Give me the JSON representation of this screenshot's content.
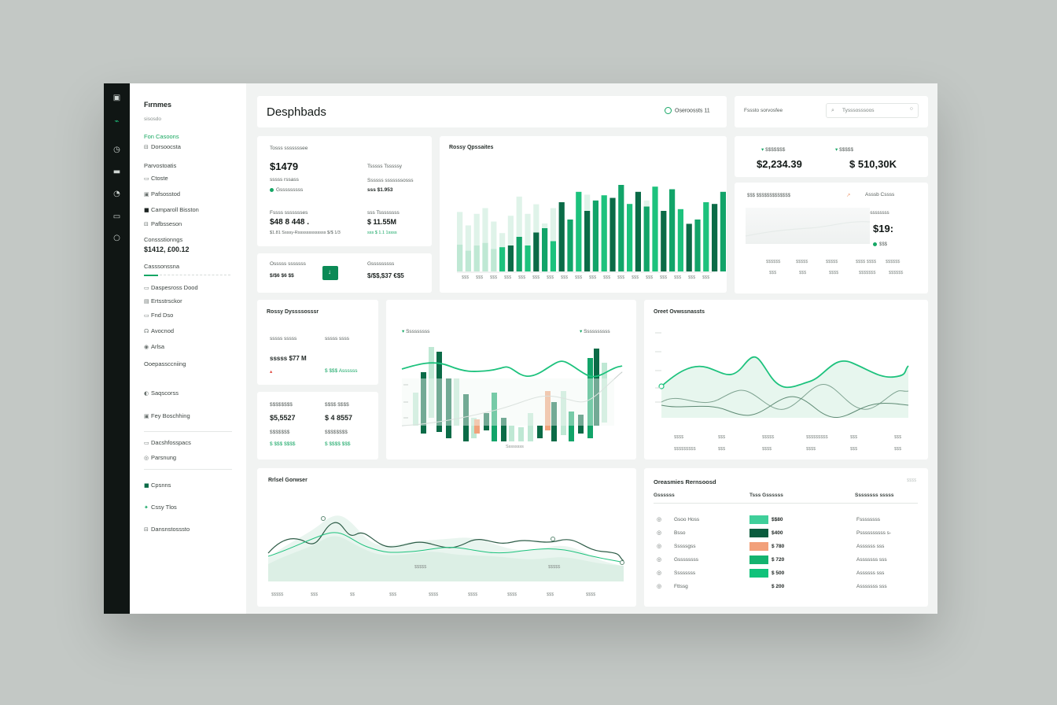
{
  "colors": {
    "dark": "#0b6b47",
    "mid": "#12a469",
    "bright": "#1dc27d",
    "pale": "#bfe8d4",
    "peach": "#f0a27b",
    "rail": "#101614"
  },
  "rail_icons": [
    "window-icon",
    "pulse-icon",
    "clock-icon",
    "card-icon",
    "gauge-icon",
    "box-icon",
    "circle-icon"
  ],
  "sidebar": {
    "title": "Fırnmes",
    "subtitle": "sisosdo",
    "items_top": [
      {
        "label": "Fon Casoons",
        "icon": "",
        "active": true
      },
      {
        "label": "Dorsoocsta",
        "icon": "⊟",
        "active": false
      }
    ],
    "section1": "Parvostoatis",
    "items_mid": [
      {
        "label": "Ctoste",
        "icon": "▭"
      },
      {
        "label": "Pafsosstod",
        "icon": "▣"
      },
      {
        "label": "Camparoll Bisston",
        "icon": "■"
      },
      {
        "label": "Pafbsseson",
        "icon": "⊟"
      }
    ],
    "section2": "Conssstionngs",
    "amount": "$1412, £00.12",
    "section3": "Casssonssna",
    "items_low": [
      {
        "label": "Daspesross Dood",
        "icon": "▭"
      },
      {
        "label": "Ertsstrsckor",
        "icon": "▤"
      },
      {
        "label": "Fnd Dso",
        "icon": "▭"
      },
      {
        "label": "Avocnod",
        "icon": "☊"
      },
      {
        "label": "Arlsa",
        "icon": "◉"
      }
    ],
    "section4": "Ooepassccniing",
    "items_bottom": [
      {
        "label": "Saqscorss",
        "icon": "◐"
      },
      {
        "label": "Fey Boschhing",
        "icon": "▣"
      },
      {
        "label": "Dacshfosspacs",
        "icon": "▭"
      },
      {
        "label": "Parsnung",
        "icon": "◎"
      },
      {
        "label": "Cpsnns",
        "icon": "■"
      },
      {
        "label": "Cssy Tlos",
        "icon": "✦"
      },
      {
        "label": "Dansnstosssto",
        "icon": "⊟"
      }
    ]
  },
  "header": {
    "title": "Desphbads",
    "status": "Oseroossts 11",
    "search_label": "Fsssto sorvosfee",
    "search_placeholder": "Tysssosssoos"
  },
  "kpi_card": {
    "label": "Tosss sssssssee",
    "value": "$1479",
    "sub1": "sssss rssass",
    "sub2": "Gsssssssss",
    "right1": "Tsssss Tsssssy",
    "right2": "Ssssss sssssssosss",
    "right3": "sss $1.953",
    "label2": "Fssss ssssssses",
    "value2": "$48 8 448 .",
    "sub3": "$1.81 Ssssy-Rsssssssssssss $/$ 1/3",
    "label3": "sss Tssssssss",
    "value3": "$ 11.55M",
    "sub4": "sss $ 1.1 1ssss"
  },
  "small_card": {
    "label_left": "Osssss sssssss",
    "value_left": "$/$6 $6 $$",
    "label_right": "Gsssssssss",
    "value_right": "$/$$,$37 €$5"
  },
  "bar_chart": {
    "title": "Rossy Qpssaites",
    "x_ticks": [
      "$$$",
      "$$$",
      "$$$",
      "$$$",
      "$$$",
      "$$$",
      "$$$",
      "$$$",
      "$$$",
      "$$$",
      "$$$",
      "$$$",
      "$$$",
      "$$$",
      "$$$",
      "$$$",
      "$$$",
      "$$$"
    ]
  },
  "top_right": {
    "label_a": "$$$$$$$",
    "value_a": "$2,234.39",
    "label_b": "$$$$$",
    "value_b": "$ 510,30K",
    "panel_label": "$$$ $$$$$$$$$$$$$",
    "panel_right": "Asssb Cssss",
    "panel_sub": "Gssssssss",
    "panel_value": "$19:",
    "panel_small": "$$$",
    "ticks_a": [
      "$$$$$$",
      "$$$$$",
      "$$$$$",
      "$$$$ $$$$",
      "$$$$$$"
    ],
    "ticks_b": [
      "$$$",
      "$$$",
      "$$$$",
      "$$$$$$$",
      "$$$$$$"
    ]
  },
  "mid_left": {
    "title": "Rossy Dyssssosssr",
    "l1": "sssss sssss",
    "r1": "sssss ssss",
    "v1": "sssss $77 M",
    "v1r": "$ $$$ Assssss",
    "l2": "$$$$$$$$",
    "r2": "$$$$ $$$$",
    "v2": "$5,5527",
    "v2r": "$ 4 8557",
    "s2": "$$$$$$$",
    "s2r": "$$$$$$$$",
    "g1": "$ $$$ $$$$",
    "g2": "$ $$$$ $$$"
  },
  "candle_chart": {
    "label_left": "Sssssssss",
    "label_right": "Ssssssssss",
    "x_caption": "Ssssssss"
  },
  "line_chart_right": {
    "title": "Oreet Ovwssnassts",
    "x_ticks": [
      "$$$$",
      "$$$",
      "$$$$$",
      "$$$$$$$$$",
      "$$$",
      "$$$"
    ],
    "x_ticks2": [
      "$$$$$$$$$",
      "$$$",
      "$$$$",
      "$$$$",
      "$$$",
      "$$$"
    ]
  },
  "area_chart": {
    "title": "Rrlsel Gorwser",
    "note1": "$$$$$",
    "note2": "$$$$$",
    "x_ticks": [
      "$$$$$",
      "$$$",
      "$$",
      "$$$",
      "$$$$",
      "$$$$",
      "$$$$",
      "$$$",
      "$$$$"
    ]
  },
  "table": {
    "title": "Oreasmies Rernsoosd",
    "headers": [
      "Gssssss",
      "Tsss Gssssss",
      "Ssssssss sssss"
    ],
    "rows": [
      {
        "name": "Gsoo Hoss",
        "value": "$$80",
        "status": "Fssssssss",
        "color": "#3fcf9a"
      },
      {
        "name": "Bsso",
        "value": "$400",
        "status": "Pssssssssss s-",
        "color": "#0b5c3e"
      },
      {
        "name": "Sssssgss",
        "value": "$ 780",
        "status": "Assssss sss",
        "color": "#f2a07a"
      },
      {
        "name": "Gssssssss",
        "value": "$ 720",
        "status": "Asssssss sss",
        "color": "#14b36f"
      },
      {
        "name": "Ssssssss",
        "value": "$ 500",
        "status": "Assssss sss",
        "color": "#10c27a"
      },
      {
        "name": "Fttssg",
        "value": "$ 200",
        "status": "Asssssss sss",
        "color": ""
      }
    ],
    "corner": "$$$$"
  }
}
